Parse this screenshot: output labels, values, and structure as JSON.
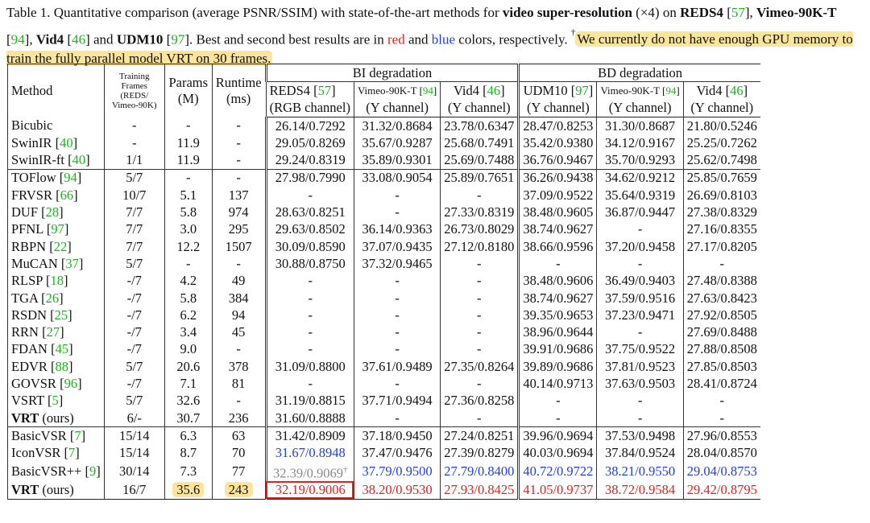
{
  "caption": [
    "Table 1. Quantitative comparison (average PSNR/SSIM) with state-of-the-art methods for ",
    "video super-resolution",
    " (×4) on ",
    "REDS4",
    " [57], ",
    "Vimeo-90K-T",
    " [94], ",
    "Vid4",
    " [46] and ",
    "UDM10",
    " [97]. Best and second best results are in ",
    "red",
    " and ",
    "blue",
    " colors, respectively. ",
    "†",
    "We currently do not have enough GPU memory to train the fully parallel model VRT on 30 frames."
  ],
  "table": {
    "header": {
      "method": "Method",
      "frames": "Training Frames (REDS/ Vimeo-90K)",
      "params": "Params (M)",
      "runtime": "Runtime (ms)",
      "groups": [
        "BI degradation",
        "BD degradation"
      ],
      "datasets": [
        "REDS4 [57]",
        "Vimeo-90K-T [94]",
        "Vid4 [46]",
        "UDM10 [97]",
        "Vimeo-90K-T [94]",
        "Vid4 [46]"
      ],
      "channels": [
        "(RGB channel)",
        "(Y channel)",
        "(Y channel)",
        "(Y channel)",
        "(Y channel)",
        "(Y channel)"
      ]
    },
    "body": [
      [
        [
          "Bicubic",
          "-",
          "-",
          "-",
          "26.14/0.7292",
          "31.32/0.8684",
          "23.78/0.6347",
          "28.47/0.8253",
          "31.30/0.8687",
          "21.80/0.5246"
        ],
        [
          "SwinIR [40]",
          "-",
          "11.9",
          "-",
          "29.05/0.8269",
          "35.67/0.9287",
          "25.68/0.7491",
          "35.42/0.9380",
          "34.12/0.9167",
          "25.25/0.7262"
        ],
        [
          "SwinIR-ft [40]",
          "1/1",
          "11.9",
          "-",
          "29.24/0.8319",
          "35.89/0.9301",
          "25.69/0.7488",
          "36.76/0.9467",
          "35.70/0.9293",
          "25.62/0.7498"
        ]
      ],
      [
        [
          "TOFlow [94]",
          "5/7",
          "-",
          "-",
          "27.98/0.7990",
          "33.08/0.9054",
          "25.89/0.7651",
          "36.26/0.9438",
          "34.62/0.9212",
          "25.85/0.7659"
        ],
        [
          "FRVSR [66]",
          "10/7",
          "5.1",
          "137",
          "-",
          "-",
          "-",
          "37.09/0.9522",
          "35.64/0.9319",
          "26.69/0.8103"
        ],
        [
          "DUF [28]",
          "7/7",
          "5.8",
          "974",
          "28.63/0.8251",
          "-",
          "27.33/0.8319",
          "38.48/0.9605",
          "36.87/0.9447",
          "27.38/0.8329"
        ],
        [
          "PFNL [97]",
          "7/7",
          "3.0",
          "295",
          "29.63/0.8502",
          "36.14/0.9363",
          "26.73/0.8029",
          "38.74/0.9627",
          "-",
          "27.16/0.8355"
        ],
        [
          "RBPN [22]",
          "7/7",
          "12.2",
          "1507",
          "30.09/0.8590",
          "37.07/0.9435",
          "27.12/0.8180",
          "38.66/0.9596",
          "37.20/0.9458",
          "27.17/0.8205"
        ],
        [
          "MuCAN [37]",
          "5/7",
          "-",
          "-",
          "30.88/0.8750",
          "37.32/0.9465",
          "-",
          "-",
          "-",
          "-"
        ],
        [
          "RLSP [18]",
          "-/7",
          "4.2",
          "49",
          "-",
          "-",
          "-",
          "38.48/0.9606",
          "36.49/0.9403",
          "27.48/0.8388"
        ],
        [
          "TGA [26]",
          "-/7",
          "5.8",
          "384",
          "-",
          "-",
          "-",
          "38.74/0.9627",
          "37.59/0.9516",
          "27.63/0.8423"
        ],
        [
          "RSDN [25]",
          "-/7",
          "6.2",
          "94",
          "-",
          "-",
          "-",
          "39.35/0.9653",
          "37.23/0.9471",
          "27.92/0.8505"
        ],
        [
          "RRN [27]",
          "-/7",
          "3.4",
          "45",
          "-",
          "-",
          "-",
          "38.96/0.9644",
          "-",
          "27.69/0.8488"
        ],
        [
          "FDAN [45]",
          "-/7",
          "9.0",
          "-",
          "-",
          "-",
          "-",
          "39.91/0.9686",
          "37.75/0.9522",
          "27.88/0.8508"
        ],
        [
          "EDVR [88]",
          "5/7",
          "20.6",
          "378",
          "31.09/0.8800",
          "37.61/0.9489",
          "27.35/0.8264",
          "39.89/0.9686",
          "37.81/0.9523",
          "27.85/0.8503"
        ],
        [
          "GOVSR [96]",
          "-/7",
          "7.1",
          "81",
          "-",
          "-",
          "-",
          "40.14/0.9713",
          "37.63/0.9503",
          "28.41/0.8724"
        ],
        [
          "VSRT [5]",
          "5/7",
          "32.6",
          "-",
          "31.19/0.8815",
          "37.71/0.9494",
          "27.36/0.8258",
          "-",
          "-",
          "-"
        ],
        [
          "VRT (ours)",
          "6/-",
          "30.7",
          "236",
          "31.60/0.8888",
          "-",
          "-",
          "-",
          "-",
          "-"
        ]
      ],
      [
        [
          "BasicVSR [7]",
          "15/14",
          "6.3",
          "63",
          "31.42/0.8909",
          "37.18/0.9450",
          "27.24/0.8251",
          "39.96/0.9694",
          "37.53/0.9498",
          "27.96/0.8553"
        ],
        [
          "IconVSR [7]",
          "15/14",
          "8.7",
          "70",
          "31.67/0.8948",
          "37.47/0.9476",
          "27.39/0.8279",
          "40.03/0.9694",
          "37.84/0.9524",
          "28.04/0.8570"
        ],
        [
          "BasicVSR++ [9]",
          "30/14",
          "7.3",
          "77",
          "32.39/0.9069†",
          "37.79/0.9500",
          "27.79/0.8400",
          "40.72/0.9722",
          "38.21/0.9550",
          "29.04/0.8753"
        ],
        [
          "VRT (ours)",
          "16/7",
          "35.6",
          "243",
          "32.19/0.9006",
          "38.20/0.9530",
          "27.93/0.8425",
          "41.05/0.9737",
          "38.72/0.9584",
          "29.42/0.8795"
        ]
      ]
    ]
  }
}
